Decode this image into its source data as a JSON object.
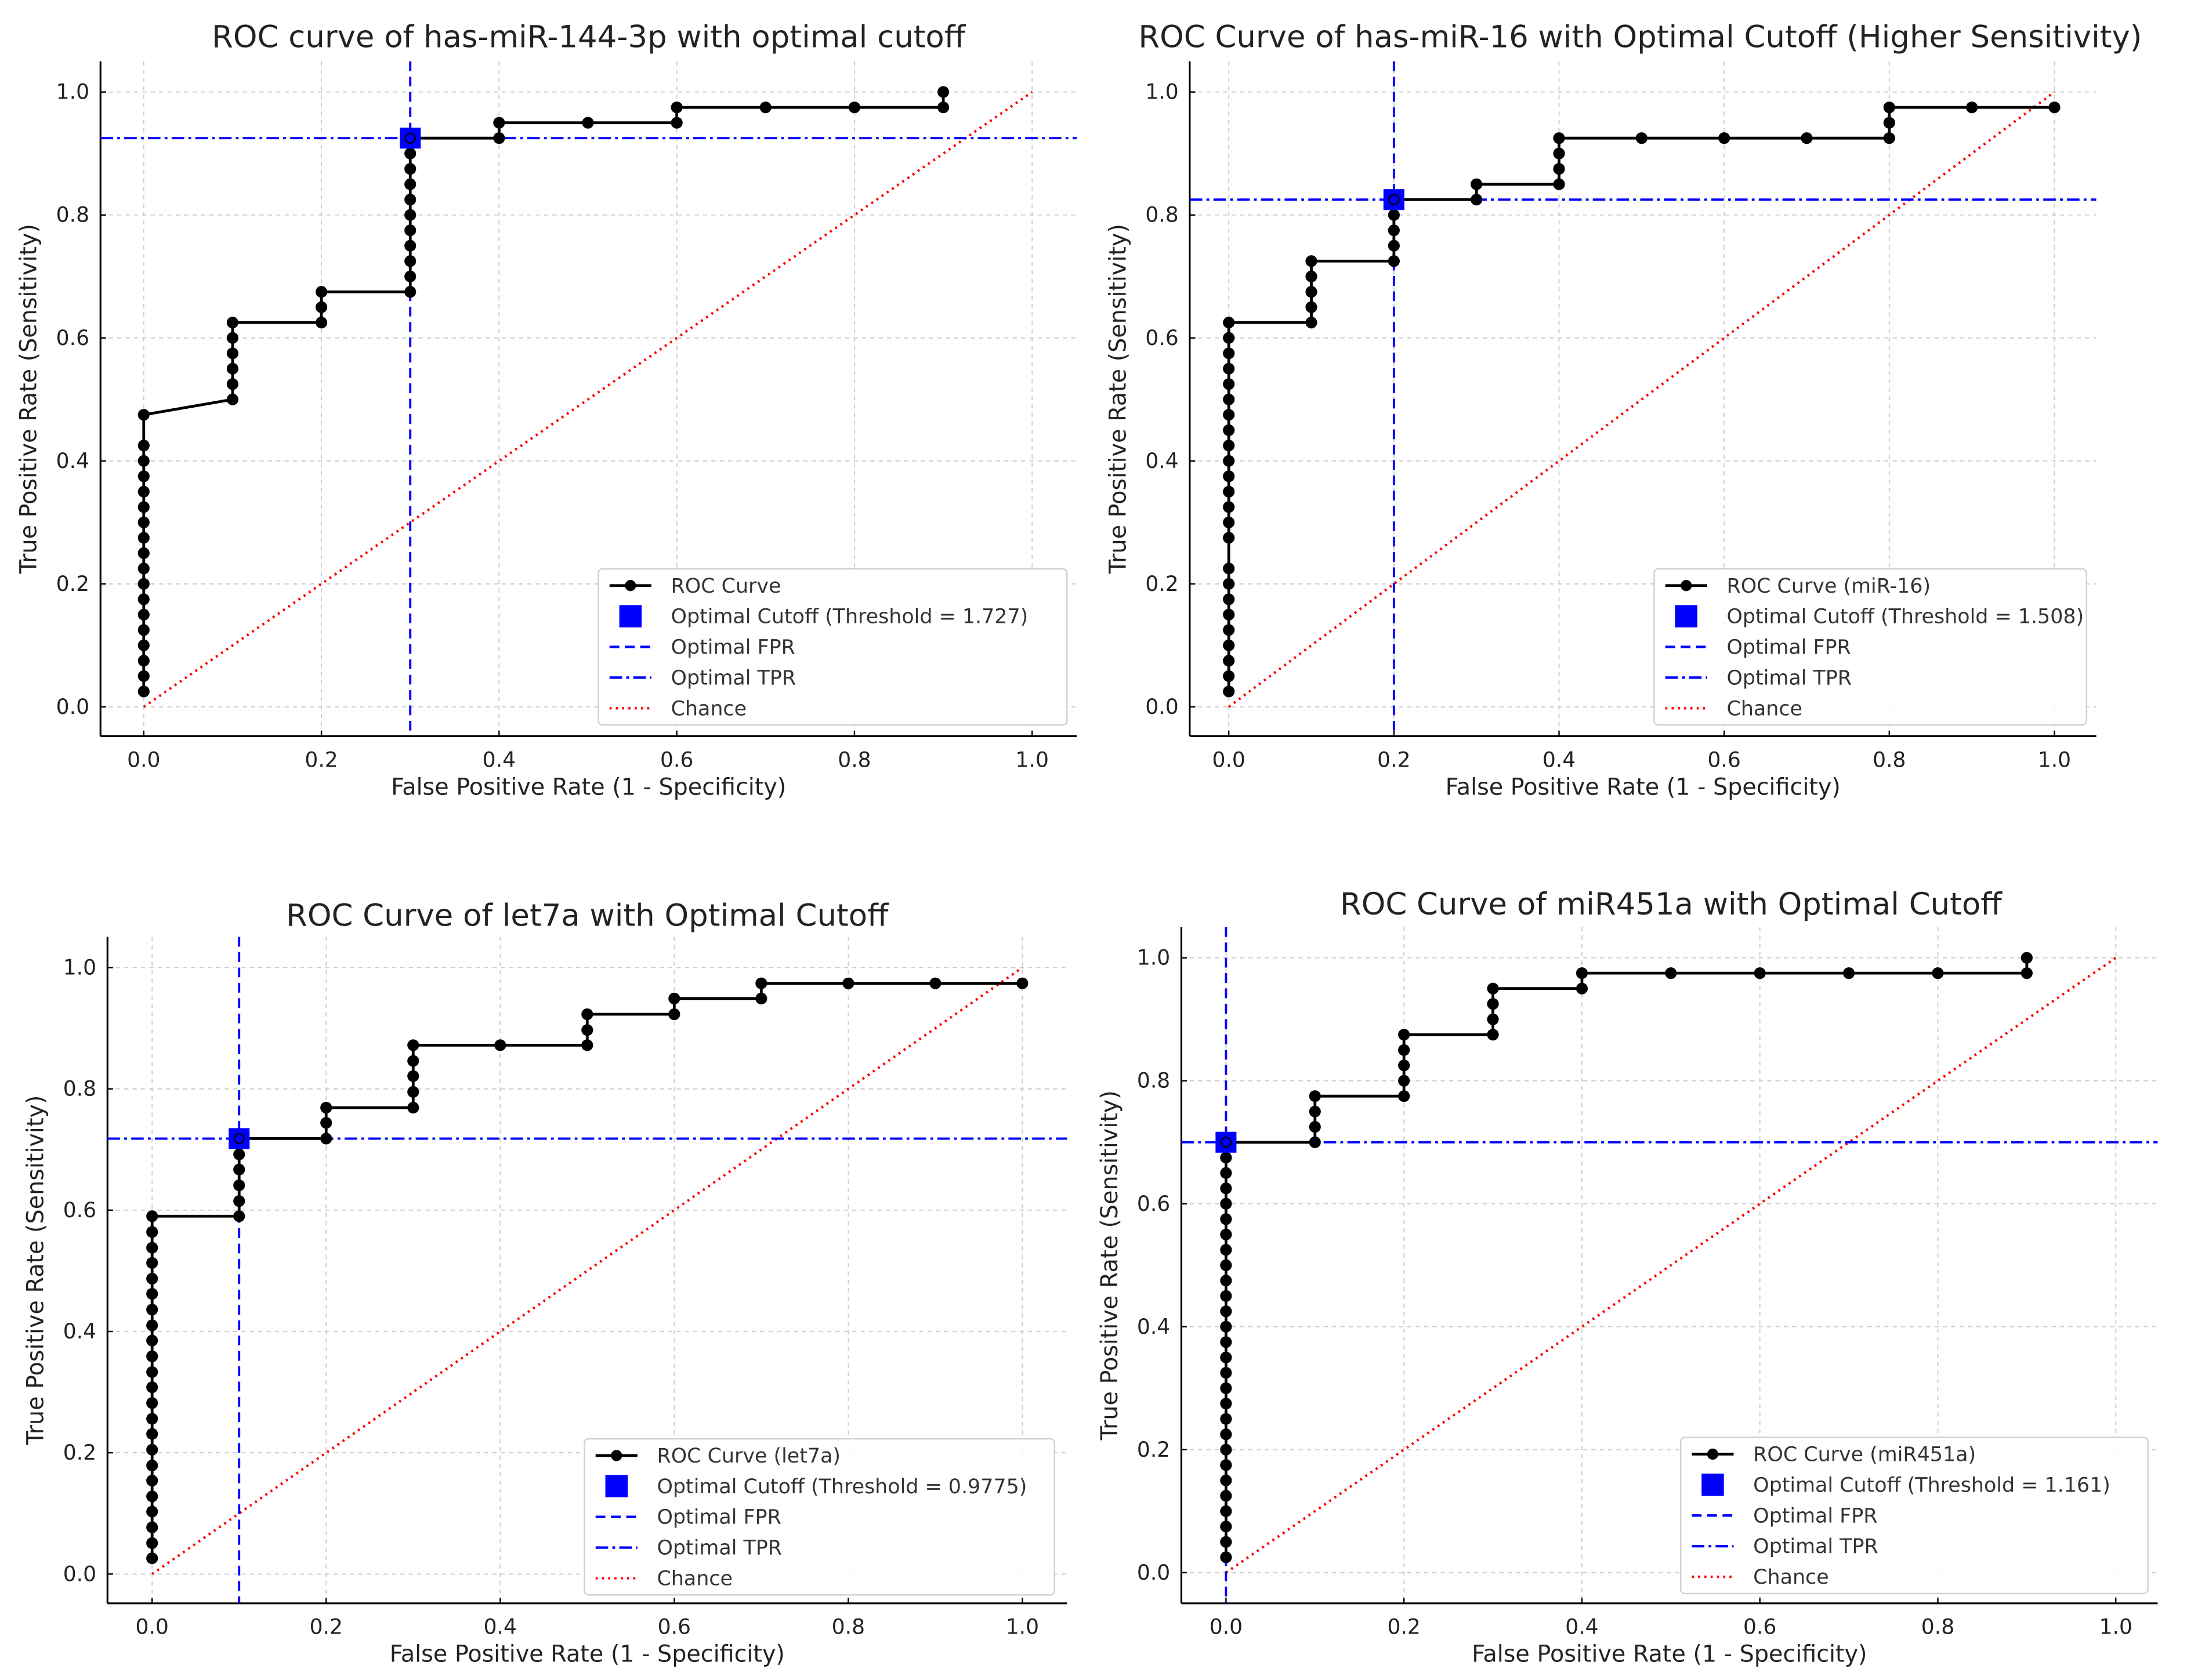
{
  "chart_data": [
    {
      "type": "line",
      "title": "ROC curve of has-miR-144-3p with optimal cutoff",
      "xlabel": "False Positive Rate (1 - Specificity)",
      "ylabel": "True Positive Rate (Sensitivity)",
      "xlim": [
        -0.05,
        1.05
      ],
      "ylim": [
        -0.05,
        1.05
      ],
      "xticks": [
        "0.0",
        "0.2",
        "0.4",
        "0.6",
        "0.8",
        "1.0"
      ],
      "yticks": [
        "0.0",
        "0.2",
        "0.4",
        "0.6",
        "0.8",
        "1.0"
      ],
      "grid": true,
      "legend_position": "lower-right",
      "legend": [
        "ROC Curve",
        "Optimal Cutoff (Threshold = 1.727)",
        "Optimal FPR",
        "Optimal TPR",
        "Chance"
      ],
      "optimal": {
        "fpr": 0.3,
        "tpr": 0.925,
        "threshold": 1.727
      },
      "roc_steps": [
        {
          "fpr": 0,
          "tpr": [
            0.025,
            0.05,
            0.075,
            0.1,
            0.125,
            0.15,
            0.175,
            0.2,
            0.225,
            0.25,
            0.275,
            0.3,
            0.325,
            0.35,
            0.375,
            0.4,
            0.425,
            0.475
          ]
        },
        {
          "fpr": 0.1,
          "tpr": [
            0.5,
            0.525,
            0.55,
            0.575,
            0.6,
            0.625
          ]
        },
        {
          "fpr": 0.2,
          "tpr": [
            0.625,
            0.65,
            0.675
          ]
        },
        {
          "fpr": 0.3,
          "tpr": [
            0.675,
            0.7,
            0.725,
            0.75,
            0.775,
            0.8,
            0.825,
            0.85,
            0.875,
            0.9,
            0.925
          ]
        },
        {
          "fpr": 0.4,
          "tpr": [
            0.925,
            0.95
          ]
        },
        {
          "fpr": 0.5,
          "tpr": [
            0.95
          ]
        },
        {
          "fpr": 0.6,
          "tpr": [
            0.95,
            0.975
          ]
        },
        {
          "fpr": 0.7,
          "tpr": [
            0.975
          ]
        },
        {
          "fpr": 0.8,
          "tpr": [
            0.975
          ]
        },
        {
          "fpr": 0.9,
          "tpr": [
            0.975,
            1.0
          ]
        }
      ]
    },
    {
      "type": "line",
      "title": "ROC Curve of has-miR-16 with Optimal Cutoff (Higher Sensitivity)",
      "xlabel": "False Positive Rate (1 - Specificity)",
      "ylabel": "True Positive Rate (Sensitivity)",
      "xlim": [
        -0.05,
        1.05
      ],
      "ylim": [
        -0.05,
        1.05
      ],
      "xticks": [
        "0.0",
        "0.2",
        "0.4",
        "0.6",
        "0.8",
        "1.0"
      ],
      "yticks": [
        "0.0",
        "0.2",
        "0.4",
        "0.6",
        "0.8",
        "1.0"
      ],
      "grid": true,
      "legend_position": "lower-right",
      "legend": [
        "ROC Curve (miR-16)",
        "Optimal Cutoff (Threshold = 1.508)",
        "Optimal FPR",
        "Optimal TPR",
        "Chance"
      ],
      "optimal": {
        "fpr": 0.2,
        "tpr": 0.825,
        "threshold": 1.508
      },
      "roc_steps": [
        {
          "fpr": 0,
          "tpr": [
            0.025,
            0.05,
            0.075,
            0.1,
            0.125,
            0.15,
            0.175,
            0.2,
            0.225,
            0.275,
            0.3,
            0.325,
            0.35,
            0.375,
            0.4,
            0.425,
            0.45,
            0.475,
            0.5,
            0.525,
            0.55,
            0.575,
            0.6,
            0.625
          ]
        },
        {
          "fpr": 0.1,
          "tpr": [
            0.625,
            0.65,
            0.675,
            0.7,
            0.725
          ]
        },
        {
          "fpr": 0.2,
          "tpr": [
            0.725,
            0.75,
            0.775,
            0.8,
            0.825
          ]
        },
        {
          "fpr": 0.3,
          "tpr": [
            0.825,
            0.85
          ]
        },
        {
          "fpr": 0.4,
          "tpr": [
            0.85,
            0.875,
            0.9,
            0.925
          ]
        },
        {
          "fpr": 0.5,
          "tpr": [
            0.925
          ]
        },
        {
          "fpr": 0.6,
          "tpr": [
            0.925
          ]
        },
        {
          "fpr": 0.7,
          "tpr": [
            0.925
          ]
        },
        {
          "fpr": 0.8,
          "tpr": [
            0.925,
            0.95,
            0.975
          ]
        },
        {
          "fpr": 0.9,
          "tpr": [
            0.975
          ]
        },
        {
          "fpr": 1.0,
          "tpr": [
            0.975
          ]
        }
      ]
    },
    {
      "type": "line",
      "title": "ROC Curve of let7a with Optimal Cutoff",
      "xlabel": "False Positive Rate (1 - Specificity)",
      "ylabel": "True Positive Rate (Sensitivity)",
      "xlim": [
        -0.05,
        1.05
      ],
      "ylim": [
        -0.05,
        1.05
      ],
      "xticks": [
        "0.0",
        "0.2",
        "0.4",
        "0.6",
        "0.8",
        "1.0"
      ],
      "yticks": [
        "0.0",
        "0.2",
        "0.4",
        "0.6",
        "0.8",
        "1.0"
      ],
      "grid": true,
      "legend_position": "lower-right",
      "legend": [
        "ROC Curve (let7a)",
        "Optimal Cutoff (Threshold = 0.9775)",
        "Optimal FPR",
        "Optimal TPR",
        "Chance"
      ],
      "optimal": {
        "fpr": 0.1,
        "tpr": 0.718,
        "threshold": 0.9775
      },
      "roc_steps": [
        {
          "fpr": 0,
          "tpr": [
            0.026,
            0.051,
            0.077,
            0.103,
            0.128,
            0.154,
            0.179,
            0.205,
            0.231,
            0.256,
            0.282,
            0.308,
            0.333,
            0.359,
            0.385,
            0.41,
            0.436,
            0.462,
            0.487,
            0.513,
            0.538,
            0.564,
            0.59
          ]
        },
        {
          "fpr": 0.1,
          "tpr": [
            0.59,
            0.615,
            0.641,
            0.667,
            0.692,
            0.718
          ]
        },
        {
          "fpr": 0.2,
          "tpr": [
            0.718,
            0.744,
            0.769
          ]
        },
        {
          "fpr": 0.3,
          "tpr": [
            0.769,
            0.795,
            0.821,
            0.846,
            0.872
          ]
        },
        {
          "fpr": 0.4,
          "tpr": [
            0.872
          ]
        },
        {
          "fpr": 0.5,
          "tpr": [
            0.872,
            0.897,
            0.923
          ]
        },
        {
          "fpr": 0.6,
          "tpr": [
            0.923,
            0.949
          ]
        },
        {
          "fpr": 0.7,
          "tpr": [
            0.949,
            0.974
          ]
        },
        {
          "fpr": 0.8,
          "tpr": [
            0.974
          ]
        },
        {
          "fpr": 0.9,
          "tpr": [
            0.974
          ]
        },
        {
          "fpr": 1.0,
          "tpr": [
            0.974
          ]
        }
      ]
    },
    {
      "type": "line",
      "title": "ROC Curve of miR451a with Optimal Cutoff",
      "xlabel": "False Positive Rate (1 - Specificity)",
      "ylabel": "True Positive Rate (Sensitivity)",
      "xlim": [
        -0.05,
        1.05
      ],
      "ylim": [
        -0.05,
        1.05
      ],
      "xticks": [
        "0.0",
        "0.2",
        "0.4",
        "0.6",
        "0.8",
        "1.0"
      ],
      "yticks": [
        "0.0",
        "0.2",
        "0.4",
        "0.6",
        "0.8",
        "1.0"
      ],
      "grid": true,
      "legend_position": "lower-right",
      "legend": [
        "ROC Curve (miR451a)",
        "Optimal Cutoff (Threshold = 1.161)",
        "Optimal FPR",
        "Optimal TPR",
        "Chance"
      ],
      "optimal": {
        "fpr": 0.0,
        "tpr": 0.7,
        "threshold": 1.161
      },
      "roc_steps": [
        {
          "fpr": 0,
          "tpr": [
            0.025,
            0.05,
            0.075,
            0.1,
            0.125,
            0.15,
            0.175,
            0.2,
            0.225,
            0.25,
            0.275,
            0.3,
            0.325,
            0.35,
            0.375,
            0.4,
            0.425,
            0.45,
            0.475,
            0.5,
            0.525,
            0.55,
            0.575,
            0.6,
            0.625,
            0.65,
            0.675,
            0.7
          ]
        },
        {
          "fpr": 0.1,
          "tpr": [
            0.7,
            0.725,
            0.75,
            0.775
          ]
        },
        {
          "fpr": 0.2,
          "tpr": [
            0.775,
            0.8,
            0.825,
            0.85,
            0.875
          ]
        },
        {
          "fpr": 0.3,
          "tpr": [
            0.875,
            0.9,
            0.925,
            0.95
          ]
        },
        {
          "fpr": 0.4,
          "tpr": [
            0.95,
            0.975
          ]
        },
        {
          "fpr": 0.5,
          "tpr": [
            0.975
          ]
        },
        {
          "fpr": 0.6,
          "tpr": [
            0.975
          ]
        },
        {
          "fpr": 0.7,
          "tpr": [
            0.975
          ]
        },
        {
          "fpr": 0.8,
          "tpr": [
            0.975
          ]
        },
        {
          "fpr": 0.9,
          "tpr": [
            0.975,
            1.0
          ]
        }
      ]
    }
  ],
  "colors": {
    "roc": "#000000",
    "optimal": "#0000ff",
    "chance": "#ff0000",
    "grid": "#cccccc"
  }
}
